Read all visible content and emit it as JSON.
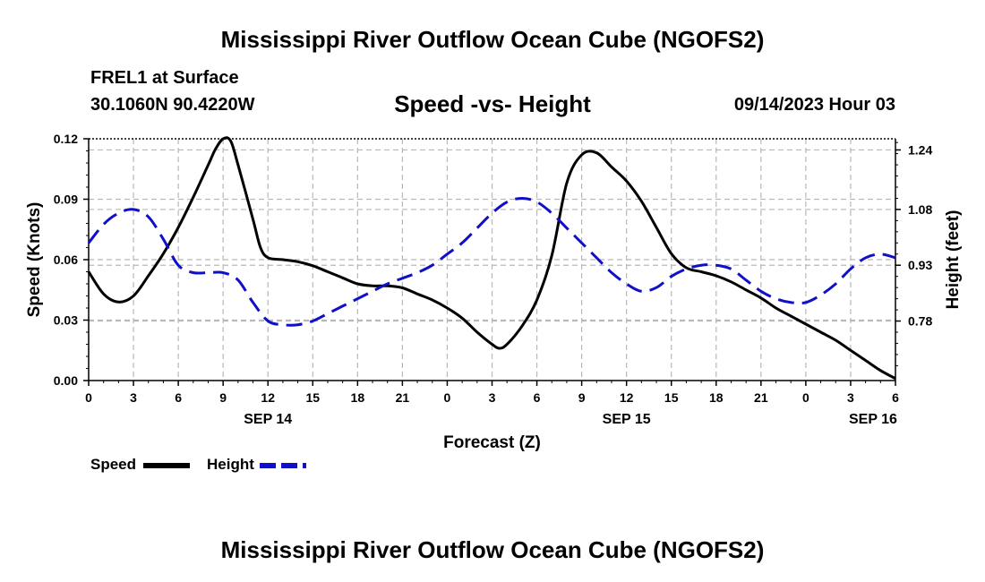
{
  "page": {
    "title": "Mississippi River Outflow Ocean Cube (NGOFS2)",
    "station": "FREL1 at Surface",
    "coords": "30.1060N  90.4220W",
    "subtitle": "Speed -vs- Height",
    "datetime": "09/14/2023 Hour 03",
    "footer_title": "Mississippi River Outflow Ocean Cube (NGOFS2)"
  },
  "legend": {
    "speed_label": "Speed",
    "height_label": "Height"
  },
  "colors": {
    "speed": "#000000",
    "height": "#1010c8",
    "grid": "#b8b8b8"
  },
  "chart_data": {
    "type": "line",
    "title": "Speed -vs- Height",
    "xlabel": "Forecast (Z)",
    "ylabel": "Speed (Knots)",
    "y2label": "Height (feet)",
    "xlim": [
      0,
      54
    ],
    "ylim": [
      0,
      0.12
    ],
    "y2lim": [
      0.62,
      1.27
    ],
    "x_ticks": [
      0,
      3,
      6,
      9,
      12,
      15,
      18,
      21,
      24,
      27,
      30,
      33,
      36,
      39,
      42,
      45,
      48,
      51,
      54
    ],
    "x_tick_labels": [
      "0",
      "3",
      "6",
      "9",
      "12",
      "15",
      "18",
      "21",
      "0",
      "3",
      "6",
      "9",
      "12",
      "15",
      "18",
      "21",
      "0",
      "3",
      "6"
    ],
    "date_labels": [
      {
        "x": 12,
        "label": "SEP 14"
      },
      {
        "x": 36,
        "label": "SEP 15"
      },
      {
        "x": 52.5,
        "label": "SEP 16"
      }
    ],
    "y_ticks": [
      0.0,
      0.03,
      0.06,
      0.09,
      0.12
    ],
    "y_tick_labels": [
      "0.00",
      "0.03",
      "0.06",
      "0.09",
      "0.12"
    ],
    "y2_ticks": [
      0.78,
      0.93,
      1.08,
      1.24
    ],
    "y2_tick_labels": [
      "0.78",
      "0.93",
      "1.08",
      "1.24"
    ],
    "series": [
      {
        "name": "Speed",
        "axis": "left",
        "style": "solid",
        "x": [
          0,
          1,
          2,
          3,
          4,
          5,
          6,
          7,
          8,
          8.5,
          9,
          9.5,
          10,
          11,
          11.5,
          12,
          13,
          14,
          15,
          16,
          17,
          18,
          19,
          20,
          21,
          22,
          23,
          24,
          25,
          26,
          27,
          27.5,
          28,
          29,
          30,
          31,
          32,
          33,
          34,
          35,
          36,
          37,
          38,
          39,
          40,
          41,
          42,
          43,
          44,
          45,
          46,
          47,
          48,
          49,
          50,
          51,
          52,
          53,
          54
        ],
        "values": [
          0.054,
          0.043,
          0.039,
          0.042,
          0.052,
          0.063,
          0.076,
          0.091,
          0.107,
          0.115,
          0.12,
          0.119,
          0.107,
          0.08,
          0.066,
          0.061,
          0.06,
          0.059,
          0.057,
          0.054,
          0.051,
          0.048,
          0.047,
          0.047,
          0.046,
          0.043,
          0.04,
          0.036,
          0.031,
          0.024,
          0.018,
          0.016,
          0.018,
          0.027,
          0.04,
          0.062,
          0.098,
          0.112,
          0.113,
          0.106,
          0.099,
          0.089,
          0.076,
          0.063,
          0.056,
          0.054,
          0.052,
          0.049,
          0.045,
          0.041,
          0.036,
          0.032,
          0.028,
          0.024,
          0.02,
          0.015,
          0.01,
          0.005,
          0.001
        ]
      },
      {
        "name": "Height",
        "axis": "right",
        "style": "dashed",
        "x": [
          0,
          1,
          2,
          3,
          4,
          5,
          6,
          7,
          8,
          9,
          10,
          11,
          12,
          13,
          14,
          15,
          16,
          17,
          18,
          19,
          20,
          21,
          22,
          23,
          24,
          25,
          26,
          27,
          28,
          29,
          30,
          31,
          32,
          33,
          34,
          35,
          36,
          37,
          38,
          39,
          40,
          41,
          42,
          43,
          44,
          45,
          46,
          47,
          48,
          49,
          50,
          51,
          52,
          53,
          54
        ],
        "values": [
          0.99,
          1.04,
          1.07,
          1.08,
          1.06,
          1.0,
          0.93,
          0.91,
          0.91,
          0.91,
          0.89,
          0.83,
          0.78,
          0.77,
          0.77,
          0.78,
          0.8,
          0.82,
          0.84,
          0.86,
          0.88,
          0.895,
          0.91,
          0.93,
          0.96,
          0.99,
          1.03,
          1.07,
          1.1,
          1.11,
          1.1,
          1.07,
          1.03,
          0.99,
          0.95,
          0.91,
          0.88,
          0.86,
          0.87,
          0.9,
          0.92,
          0.93,
          0.93,
          0.92,
          0.89,
          0.86,
          0.84,
          0.83,
          0.83,
          0.85,
          0.88,
          0.92,
          0.95,
          0.96,
          0.95
        ]
      }
    ]
  }
}
